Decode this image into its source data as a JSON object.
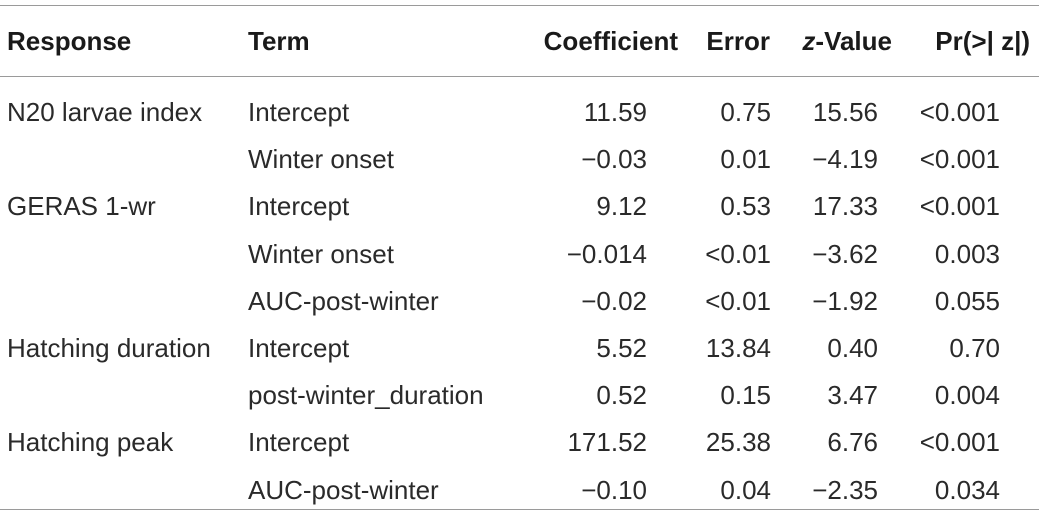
{
  "table": {
    "headers": {
      "response": "Response",
      "term": "Term",
      "coefficient": "Coefficient",
      "error": "Error",
      "z_value_prefix": "z",
      "z_value_suffix": "-Value",
      "p_value": "Pr(>| z|)"
    },
    "rows": [
      {
        "response": "N20 larvae index",
        "term": "Intercept",
        "coefficient": "11.59",
        "error": "0.75",
        "z_value": "15.56",
        "p_value": "<0.001"
      },
      {
        "response": "",
        "term": "Winter onset",
        "coefficient": "−0.03",
        "error": "0.01",
        "z_value": "−4.19",
        "p_value": "<0.001"
      },
      {
        "response": "GERAS 1-wr",
        "term": "Intercept",
        "coefficient": "9.12",
        "error": "0.53",
        "z_value": "17.33",
        "p_value": "<0.001"
      },
      {
        "response": "",
        "term": "Winter onset",
        "coefficient": "−0.014",
        "error": "<0.01",
        "z_value": "−3.62",
        "p_value": "0.003"
      },
      {
        "response": "",
        "term": "AUC-post-winter",
        "coefficient": "−0.02",
        "error": "<0.01",
        "z_value": "−1.92",
        "p_value": "0.055"
      },
      {
        "response": "Hatching duration",
        "term": "Intercept",
        "coefficient": "5.52",
        "error": "13.84",
        "z_value": "0.40",
        "p_value": "0.70"
      },
      {
        "response": "",
        "term": "post-winter_duration",
        "coefficient": "0.52",
        "error": "0.15",
        "z_value": "3.47",
        "p_value": "0.004"
      },
      {
        "response": "Hatching peak",
        "term": "Intercept",
        "coefficient": "171.52",
        "error": "25.38",
        "z_value": "6.76",
        "p_value": "<0.001"
      },
      {
        "response": "",
        "term": "AUC-post-winter",
        "coefficient": "−0.10",
        "error": "0.04",
        "z_value": "−2.35",
        "p_value": "0.034"
      }
    ]
  }
}
